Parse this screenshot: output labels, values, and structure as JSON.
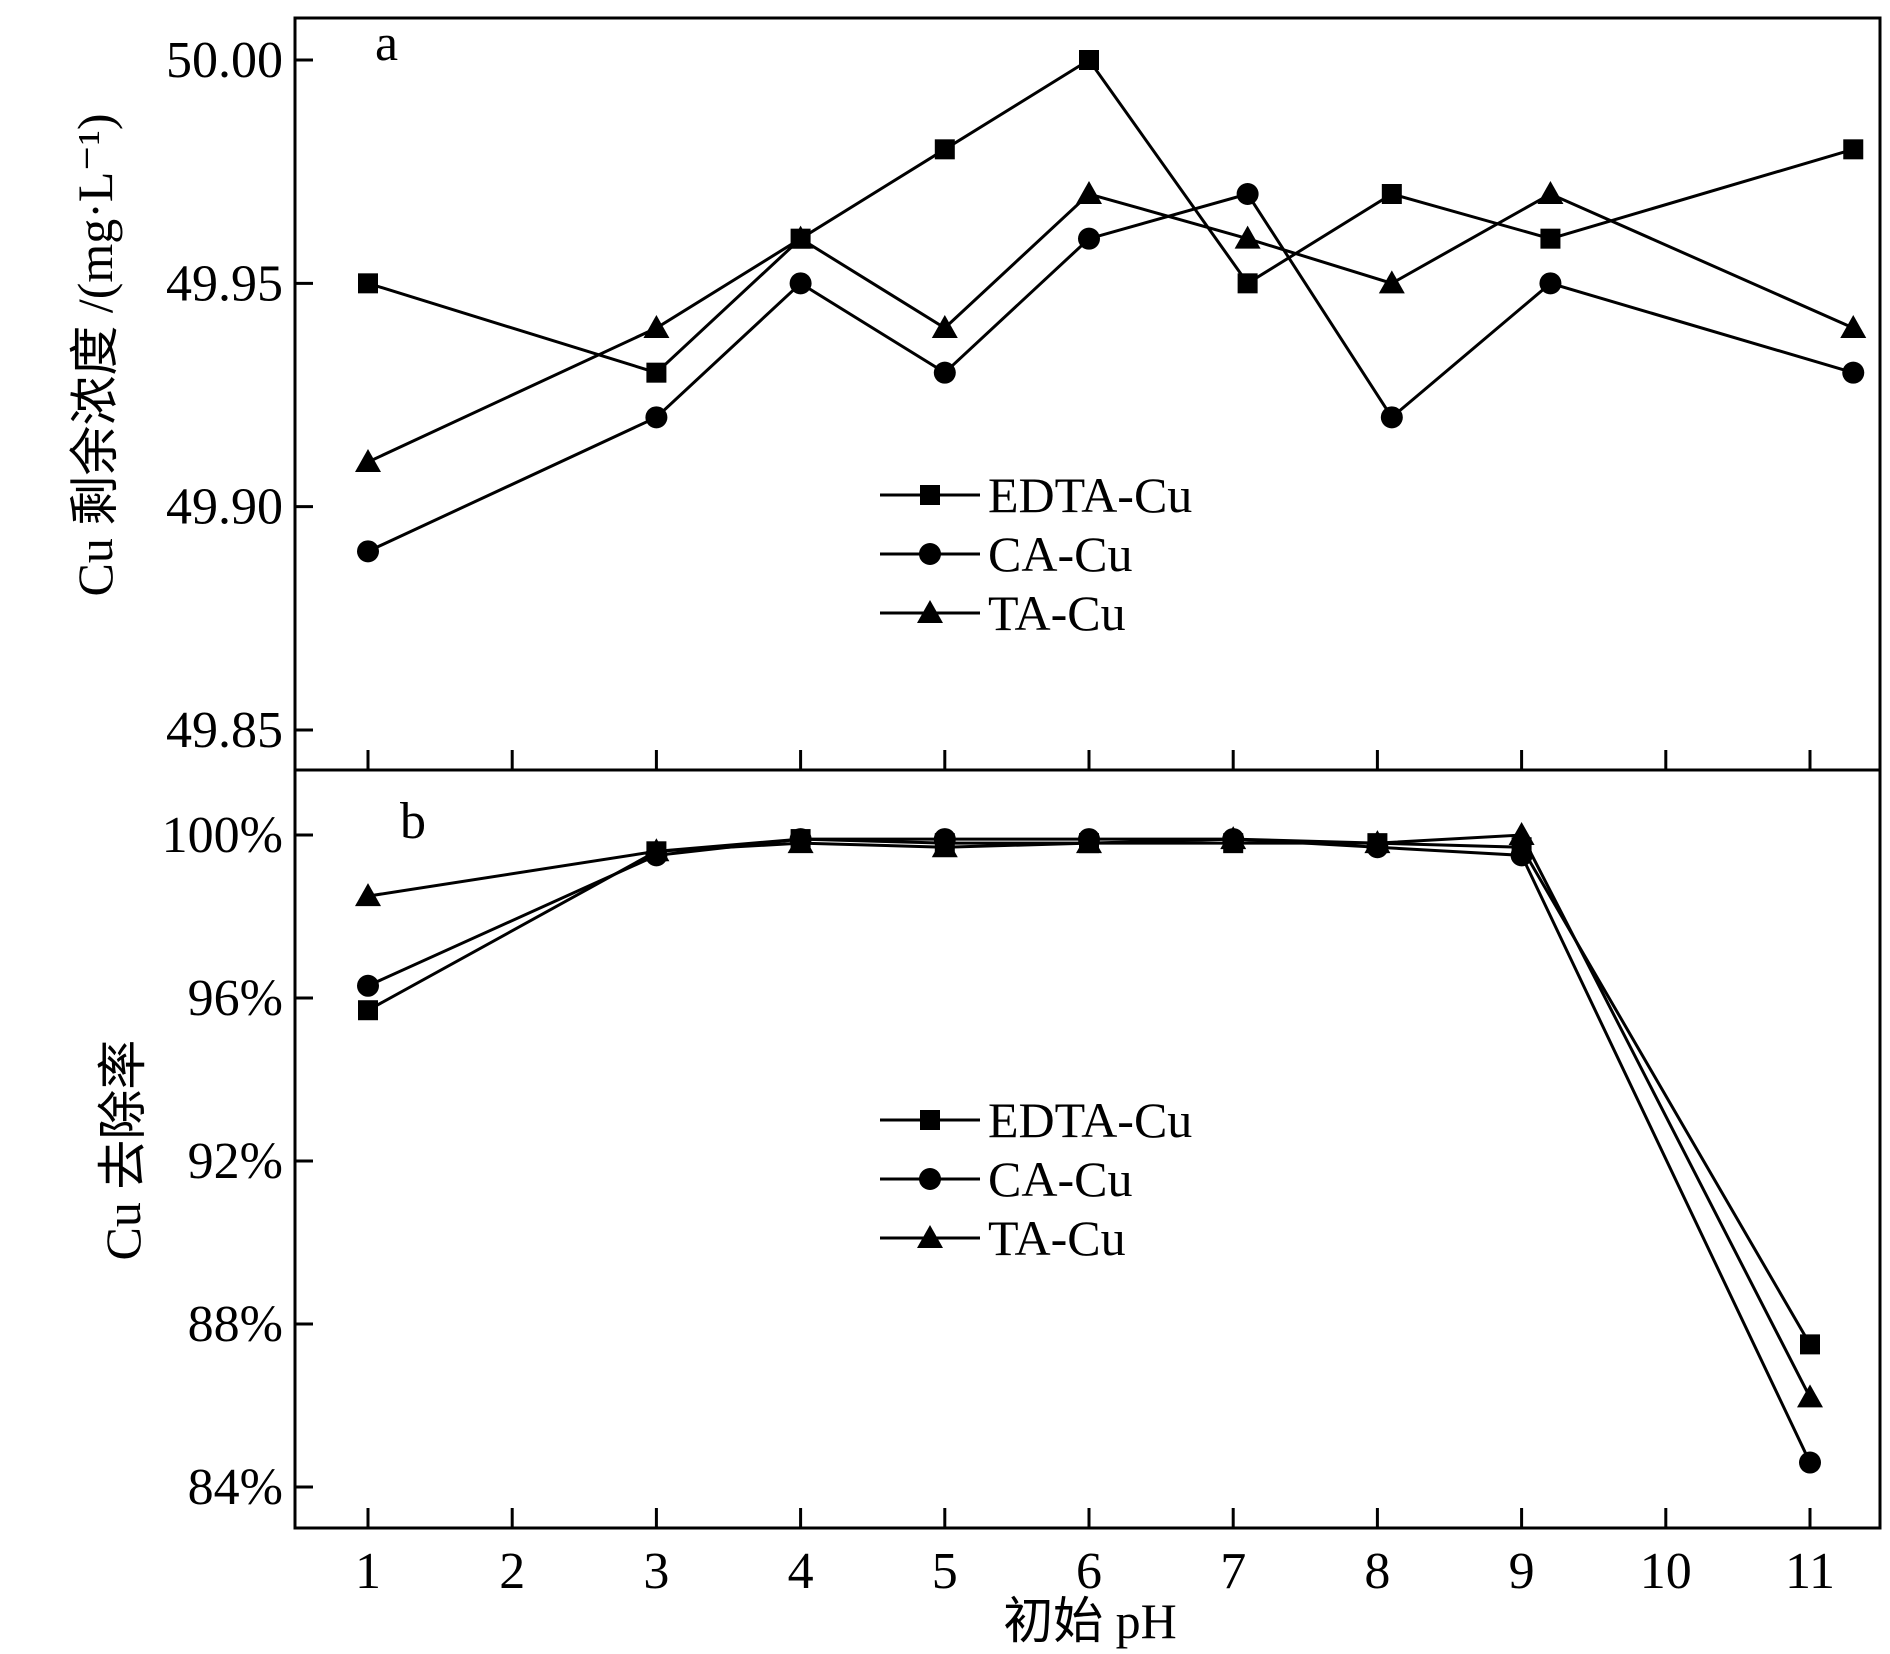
{
  "x_title": "初始 pH",
  "chart_data": [
    {
      "type": "line",
      "panel_label": "a",
      "ylabel": "Cu 剩余浓度 /(mg·L⁻¹)",
      "ylim": [
        49.84,
        50.01
      ],
      "yticks": [
        "49.85",
        "49.90",
        "49.95",
        "50.00"
      ],
      "xlim": [
        0.5,
        11.5
      ],
      "xticks": [
        "1",
        "2",
        "3",
        "4",
        "5",
        "6",
        "7",
        "8",
        "9",
        "10",
        "11"
      ],
      "legend_position": "center",
      "series": [
        {
          "name": "EDTA-Cu",
          "marker": "square",
          "points": [
            [
              1,
              49.95
            ],
            [
              3,
              49.93
            ],
            [
              4,
              49.96
            ],
            [
              5,
              49.98
            ],
            [
              6,
              50.0
            ],
            [
              7.1,
              49.95
            ],
            [
              8.1,
              49.97
            ],
            [
              9.2,
              49.96
            ],
            [
              11.3,
              49.98
            ]
          ]
        },
        {
          "name": "CA-Cu",
          "marker": "circle",
          "points": [
            [
              1,
              49.89
            ],
            [
              3,
              49.92
            ],
            [
              4,
              49.95
            ],
            [
              5,
              49.93
            ],
            [
              6,
              49.96
            ],
            [
              7.1,
              49.97
            ],
            [
              8.1,
              49.92
            ],
            [
              9.2,
              49.95
            ],
            [
              11.3,
              49.93
            ]
          ]
        },
        {
          "name": "TA-Cu",
          "marker": "triangle",
          "points": [
            [
              1,
              49.91
            ],
            [
              3,
              49.94
            ],
            [
              4,
              49.96
            ],
            [
              5,
              49.94
            ],
            [
              6,
              49.97
            ],
            [
              7.1,
              49.96
            ],
            [
              8.1,
              49.95
            ],
            [
              9.2,
              49.97
            ],
            [
              11.3,
              49.94
            ]
          ]
        }
      ]
    },
    {
      "type": "line",
      "panel_label": "b",
      "ylabel": "Cu 去除率",
      "ylim": [
        83,
        101
      ],
      "yticks": [
        "84%",
        "88%",
        "92%",
        "96%",
        "100%"
      ],
      "xlim": [
        0.5,
        11.5
      ],
      "xticks": [
        "1",
        "2",
        "3",
        "4",
        "5",
        "6",
        "7",
        "8",
        "9",
        "10",
        "11"
      ],
      "legend_position": "center",
      "series": [
        {
          "name": "EDTA-Cu",
          "marker": "square",
          "points": [
            [
              1,
              95.7
            ],
            [
              3,
              99.6
            ],
            [
              4,
              99.9
            ],
            [
              5,
              99.8
            ],
            [
              6,
              99.8
            ],
            [
              7,
              99.8
            ],
            [
              8,
              99.8
            ],
            [
              9,
              99.7
            ],
            [
              11,
              87.5
            ]
          ]
        },
        {
          "name": "CA-Cu",
          "marker": "circle",
          "points": [
            [
              1,
              96.3
            ],
            [
              3,
              99.5
            ],
            [
              4,
              99.9
            ],
            [
              5,
              99.9
            ],
            [
              6,
              99.9
            ],
            [
              7,
              99.9
            ],
            [
              8,
              99.7
            ],
            [
              9,
              99.5
            ],
            [
              11,
              84.6
            ]
          ]
        },
        {
          "name": "TA-Cu",
          "marker": "triangle",
          "points": [
            [
              1,
              98.5
            ],
            [
              3,
              99.6
            ],
            [
              4,
              99.8
            ],
            [
              5,
              99.7
            ],
            [
              6,
              99.8
            ],
            [
              7,
              99.9
            ],
            [
              8,
              99.8
            ],
            [
              9,
              100.0
            ],
            [
              11,
              86.2
            ]
          ]
        }
      ]
    }
  ]
}
